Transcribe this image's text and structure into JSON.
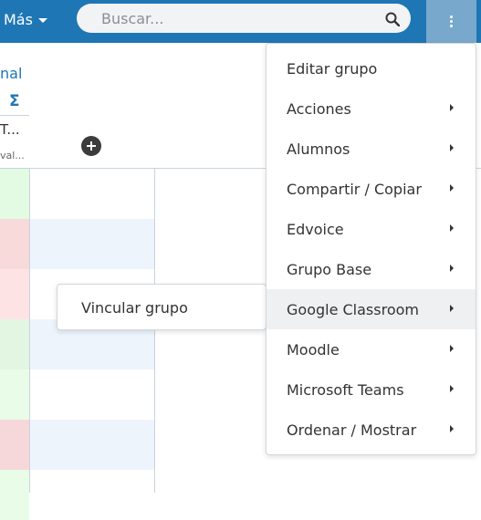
{
  "header": {
    "more_label": "Más",
    "search_placeholder": "Buscar...",
    "kebab_icon": "kebab-vertical-icon",
    "search_icon": "search-icon",
    "colors": {
      "topbar": "#1f76b5",
      "kebab_bg": "#78a9cc"
    }
  },
  "table": {
    "group_label_partial": "nal",
    "sigma": "Σ",
    "column_label_partial": "T...",
    "column_sublabel_partial": "val...",
    "add_column_icon": "plus-circle-icon",
    "row_marks": [
      "#e2fbe2",
      "#f9dadb",
      "#fde3e4",
      "#e2f6e2",
      "#e8fce8",
      "#f6d8da",
      "#e8fce8"
    ],
    "band_color": "#edf4fc"
  },
  "menu": {
    "items": [
      {
        "label": "Editar grupo",
        "has_submenu": false
      },
      {
        "label": "Acciones",
        "has_submenu": true
      },
      {
        "label": "Alumnos",
        "has_submenu": true
      },
      {
        "label": "Compartir / Copiar",
        "has_submenu": true
      },
      {
        "label": "Edvoice",
        "has_submenu": true
      },
      {
        "label": "Grupo Base",
        "has_submenu": true
      },
      {
        "label": "Google Classroom",
        "has_submenu": true
      },
      {
        "label": "Moodle",
        "has_submenu": true
      },
      {
        "label": "Microsoft Teams",
        "has_submenu": true
      },
      {
        "label": "Ordenar / Mostrar",
        "has_submenu": true
      }
    ],
    "active": "Google Classroom"
  },
  "submenu": {
    "items": [
      {
        "label": "Vincular grupo"
      }
    ]
  }
}
